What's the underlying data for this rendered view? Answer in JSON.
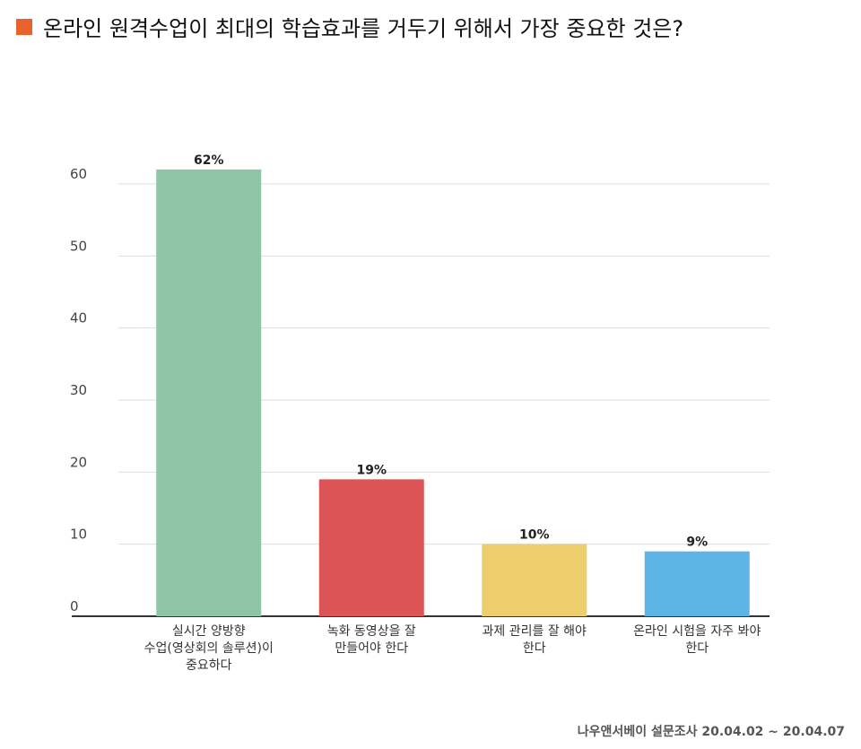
{
  "header": {
    "title": "온라인 원격수업이 최대의 학습효과를 거두기 위해서 가장 중요한 것은?",
    "square_color": "#E8632B"
  },
  "chart_data": {
    "type": "bar",
    "categories": [
      "실시간 양방향\n수업(영상회의 솔루션)이\n중요하다",
      "녹화 동영상을 잘\n만들어야 한다",
      "과제 관리를 잘 해야\n한다",
      "온라인 시험을 자주 봐야\n한다"
    ],
    "values": [
      62,
      19,
      10,
      9
    ],
    "data_labels": [
      "62%",
      "19%",
      "10%",
      "9%"
    ],
    "colors": [
      "#8FC5A6",
      "#DD5456",
      "#EECD6C",
      "#5CB5E4"
    ],
    "yticks": [
      "0",
      "10",
      "20",
      "30",
      "40",
      "50",
      "60"
    ],
    "ylim": [
      0,
      60
    ],
    "grid": true,
    "legend": "none"
  },
  "footer": {
    "source": "나우앤서베이 설문조사 20.04.02 ~ 20.04.07"
  }
}
